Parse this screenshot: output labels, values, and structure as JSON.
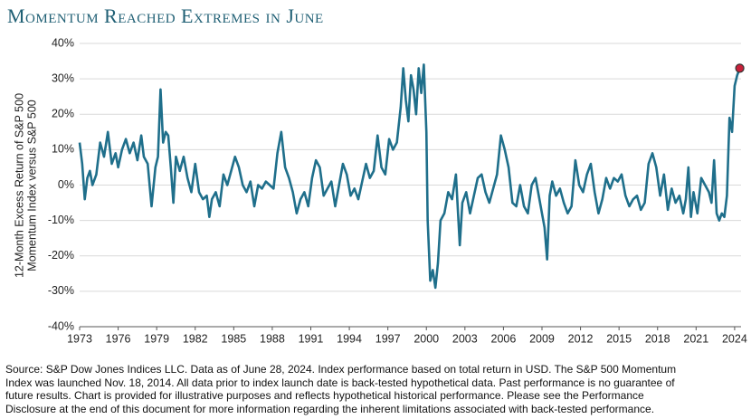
{
  "chart_data": {
    "type": "line",
    "title": "Momentum Reached Extremes in June",
    "ylabel": [
      "12-Month Excess Return of S&P 500",
      "Momentum Index versus S&P 500"
    ],
    "footnote": [
      "Source: S&P Dow Jones Indices LLC.  Data as of June 28, 2024.  Index performance based on total return in USD.  The S&P 500 Momentum",
      "Index was launched Nov. 18, 2014.  All data prior to index launch date is back-tested hypothetical data.  Past performance is no guarantee of",
      "future results.  Chart is provided for illustrative purposes and reflects hypothetical historical performance.  Please see the Performance",
      "Disclosure at the end of this document for more information regarding the inherent limitations associated with back-tested performance."
    ],
    "series": [
      {
        "color": "#1f6f8b",
        "marker_color": "#c8203a",
        "x": [
          1973.0,
          1973.2,
          1973.4,
          1973.6,
          1973.8,
          1974.0,
          1974.3,
          1974.6,
          1974.9,
          1975.2,
          1975.5,
          1975.8,
          1976.0,
          1976.3,
          1976.6,
          1976.9,
          1977.2,
          1977.5,
          1977.8,
          1978.0,
          1978.3,
          1978.6,
          1978.9,
          1979.1,
          1979.3,
          1979.5,
          1979.7,
          1979.9,
          1980.1,
          1980.3,
          1980.5,
          1980.8,
          1981.1,
          1981.4,
          1981.7,
          1982.0,
          1982.3,
          1982.6,
          1982.9,
          1983.1,
          1983.3,
          1983.6,
          1983.9,
          1984.2,
          1984.5,
          1984.8,
          1985.1,
          1985.4,
          1985.7,
          1986.0,
          1986.3,
          1986.6,
          1986.9,
          1987.2,
          1987.5,
          1987.8,
          1988.1,
          1988.4,
          1988.7,
          1989.0,
          1989.3,
          1989.6,
          1989.9,
          1990.2,
          1990.5,
          1990.8,
          1991.1,
          1991.4,
          1991.7,
          1992.0,
          1992.3,
          1992.6,
          1992.9,
          1993.2,
          1993.5,
          1993.8,
          1994.1,
          1994.4,
          1994.7,
          1995.0,
          1995.3,
          1995.6,
          1995.9,
          1996.2,
          1996.5,
          1996.8,
          1997.1,
          1997.4,
          1997.7,
          1998.0,
          1998.2,
          1998.4,
          1998.6,
          1998.8,
          1999.0,
          1999.2,
          1999.4,
          1999.6,
          1999.8,
          2000.0,
          2000.1,
          2000.3,
          2000.5,
          2000.7,
          2000.9,
          2001.1,
          2001.4,
          2001.7,
          2002.0,
          2002.3,
          2002.6,
          2002.8,
          2003.1,
          2003.4,
          2003.7,
          2004.0,
          2004.3,
          2004.6,
          2004.9,
          2005.2,
          2005.5,
          2005.8,
          2006.1,
          2006.4,
          2006.7,
          2007.0,
          2007.3,
          2007.6,
          2007.9,
          2008.2,
          2008.5,
          2008.8,
          2009.0,
          2009.2,
          2009.4,
          2009.6,
          2009.8,
          2010.1,
          2010.4,
          2010.7,
          2011.0,
          2011.3,
          2011.6,
          2011.9,
          2012.2,
          2012.5,
          2012.8,
          2013.1,
          2013.4,
          2013.7,
          2014.0,
          2014.3,
          2014.6,
          2014.9,
          2015.2,
          2015.5,
          2015.8,
          2016.1,
          2016.4,
          2016.7,
          2017.0,
          2017.3,
          2017.6,
          2017.9,
          2018.2,
          2018.5,
          2018.8,
          2019.1,
          2019.4,
          2019.7,
          2020.0,
          2020.2,
          2020.4,
          2020.6,
          2020.8,
          2021.1,
          2021.4,
          2021.7,
          2022.0,
          2022.2,
          2022.4,
          2022.6,
          2022.8,
          2023.0,
          2023.2,
          2023.4,
          2023.6,
          2023.8,
          2024.0,
          2024.2,
          2024.4
        ],
        "values": [
          12,
          6,
          -4,
          2,
          4,
          0,
          3,
          12,
          8,
          15,
          6,
          9,
          5,
          10,
          13,
          9,
          12,
          7,
          14,
          8,
          6,
          -6,
          5,
          8,
          27,
          12,
          15,
          14,
          5,
          -5,
          8,
          4,
          8,
          2,
          -2,
          6,
          -2,
          -4,
          -3,
          -9,
          -4,
          -2,
          -6,
          3,
          0,
          4,
          8,
          5,
          0,
          -2,
          1,
          -6,
          0,
          -1,
          1,
          0,
          -1,
          9,
          15,
          5,
          2,
          -2,
          -8,
          -4,
          -2,
          -6,
          2,
          7,
          5,
          -3,
          -1,
          1,
          -6,
          0,
          6,
          3,
          -3,
          -1,
          -4,
          1,
          6,
          2,
          4,
          14,
          5,
          3,
          13,
          10,
          12,
          22,
          33,
          24,
          18,
          31,
          27,
          20,
          33,
          26,
          34,
          15,
          -10,
          -27,
          -24,
          -29,
          -22,
          -10,
          -8,
          -2,
          -4,
          3,
          -17,
          -5,
          -2,
          -8,
          -3,
          2,
          3,
          -2,
          -5,
          -1,
          3,
          14,
          10,
          5,
          -5,
          -6,
          0,
          -6,
          -8,
          0,
          2,
          -4,
          -8,
          -12,
          -21,
          -3,
          1,
          -3,
          -1,
          -5,
          -8,
          -6,
          7,
          0,
          -2,
          3,
          6,
          -2,
          -8,
          -4,
          2,
          -1,
          2,
          1,
          3,
          -3,
          -6,
          -4,
          -3,
          -7,
          -5,
          6,
          9,
          5,
          -3,
          3,
          -7,
          -1,
          -5,
          -3,
          -8,
          -4,
          5,
          -9,
          -2,
          -8,
          2,
          0,
          -2,
          -5,
          7,
          -8,
          -10,
          -8,
          -9,
          -3,
          19,
          15,
          28,
          31,
          33
        ]
      }
    ],
    "xlim": [
      1973,
      2024.5
    ],
    "xticks": [
      1973,
      1976,
      1979,
      1982,
      1985,
      1988,
      1991,
      1994,
      1997,
      2000,
      2003,
      2006,
      2009,
      2012,
      2015,
      2018,
      2021,
      2024
    ],
    "ylim": [
      -40,
      40
    ],
    "yticks": [
      {
        "value": -40,
        "label": "-40%"
      },
      {
        "value": -30,
        "label": "-30%"
      },
      {
        "value": -20,
        "label": "-20%"
      },
      {
        "value": -10,
        "label": "-10%"
      },
      {
        "value": 0,
        "label": "0%"
      },
      {
        "value": 10,
        "label": "10%"
      },
      {
        "value": 20,
        "label": "20%"
      },
      {
        "value": 30,
        "label": "30%"
      },
      {
        "value": 40,
        "label": "40%"
      }
    ],
    "grid": true
  }
}
